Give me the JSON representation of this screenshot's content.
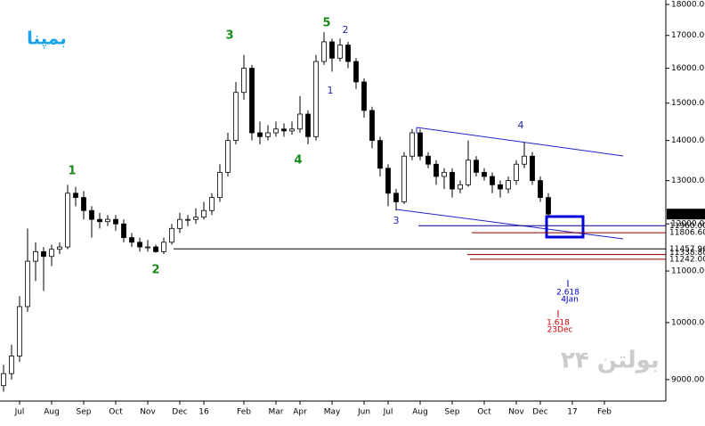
{
  "brand": "بمپنا",
  "watermark": "بولتن ۲۴",
  "chart_data": {
    "type": "candlestick",
    "categories": [
      null,
      null,
      "Jul",
      null,
      null,
      null,
      "Aug",
      null,
      null,
      null,
      "Sep",
      null,
      null,
      null,
      "Oct",
      null,
      null,
      null,
      "Nov",
      null,
      null,
      null,
      "Dec",
      null,
      null,
      "16",
      null,
      null,
      null,
      null,
      "Feb",
      null,
      null,
      null,
      "Mar",
      null,
      null,
      "Apr",
      null,
      null,
      null,
      "May",
      null,
      null,
      null,
      "Jun",
      null,
      null,
      "Jul",
      null,
      null,
      null,
      "Aug",
      null,
      null,
      null,
      "Sep",
      null,
      null,
      null,
      "Oct",
      null,
      null,
      null,
      "Nov",
      null,
      null,
      "Dec",
      null,
      null,
      null,
      "17",
      null,
      null,
      null,
      "Feb"
    ],
    "open": [
      8900,
      9100,
      9400,
      10300,
      11200,
      11400,
      11300,
      11450,
      11500,
      12700,
      12600,
      12300,
      12100,
      12050,
      12100,
      12000,
      11700,
      11600,
      11500,
      11500,
      11400,
      11600,
      11900,
      12100,
      12100,
      12150,
      12300,
      12600,
      13200,
      14000,
      15300,
      16000,
      14200,
      14100,
      14200,
      14300,
      14250,
      14300,
      14700,
      14100,
      16200,
      16800,
      16300,
      16700,
      16200,
      15600,
      14800,
      14000,
      13300,
      12700,
      12500,
      13600,
      14200,
      13600,
      13400,
      13100,
      13200,
      12800,
      12900,
      13500,
      13200,
      13100,
      12900,
      12800,
      13000,
      13400,
      13600,
      13000,
      12600,
      null,
      null,
      null,
      null,
      null,
      null,
      null
    ],
    "high": [
      9250,
      9600,
      10500,
      11900,
      11600,
      11500,
      11550,
      11600,
      12900,
      12850,
      12750,
      12400,
      12250,
      12200,
      12200,
      12100,
      11800,
      11700,
      11650,
      11550,
      11700,
      12000,
      12250,
      12200,
      12350,
      12500,
      12700,
      13400,
      14200,
      15600,
      16400,
      16100,
      14500,
      14400,
      14500,
      14450,
      14500,
      15200,
      14800,
      16400,
      17100,
      16900,
      16900,
      16800,
      16300,
      15700,
      14900,
      14100,
      13400,
      12800,
      13700,
      14300,
      14300,
      13700,
      13500,
      13300,
      13300,
      13000,
      14000,
      13600,
      13300,
      13200,
      13000,
      13100,
      13500,
      13950,
      13700,
      13100,
      12700,
      null,
      null,
      null,
      null,
      null,
      null,
      null
    ],
    "low": [
      8800,
      9000,
      9300,
      10200,
      10800,
      10600,
      11100,
      11350,
      11450,
      12400,
      12100,
      11700,
      11900,
      11950,
      11850,
      11600,
      11500,
      11400,
      11400,
      11380,
      11350,
      11550,
      11800,
      11950,
      12000,
      12100,
      12200,
      12500,
      13100,
      13900,
      15100,
      14000,
      13900,
      14000,
      14100,
      14100,
      14150,
      14200,
      13900,
      14000,
      16100,
      15900,
      16200,
      16000,
      15400,
      14600,
      13800,
      13100,
      12400,
      12300,
      12450,
      13500,
      13500,
      13300,
      12900,
      12800,
      12600,
      12700,
      12850,
      13100,
      13000,
      12700,
      12600,
      12700,
      12900,
      13300,
      12900,
      12500,
      12150,
      null,
      null,
      null,
      null,
      null,
      null,
      null
    ],
    "close": [
      9100,
      9400,
      10300,
      11200,
      11400,
      11300,
      11450,
      11500,
      12700,
      12600,
      12300,
      12100,
      12050,
      12100,
      12000,
      11700,
      11600,
      11500,
      11500,
      11400,
      11600,
      11900,
      12100,
      12100,
      12150,
      12300,
      12600,
      13200,
      14000,
      15300,
      16000,
      14200,
      14100,
      14200,
      14300,
      14250,
      14300,
      14700,
      14100,
      16200,
      16800,
      16300,
      16700,
      16200,
      15600,
      14800,
      14000,
      13300,
      12700,
      12500,
      13600,
      14200,
      13600,
      13400,
      13100,
      13200,
      12800,
      12900,
      13500,
      13200,
      13100,
      12900,
      12800,
      13000,
      13400,
      13600,
      13000,
      12600,
      12220,
      null,
      null,
      null,
      null,
      null,
      null,
      null
    ],
    "log_scale": true,
    "ylim": [
      8650,
      18150
    ],
    "yticks": [
      {
        "value": 9000,
        "label": "9000.00"
      },
      {
        "value": 10000,
        "label": "10000.00"
      },
      {
        "value": 11000,
        "label": "11000.00"
      },
      {
        "value": 12000,
        "label": "12000.00"
      },
      {
        "value": 13000,
        "label": "13000.00"
      },
      {
        "value": 14000,
        "label": "14000.00"
      },
      {
        "value": 15000,
        "label": "15000.00"
      },
      {
        "value": 16000,
        "label": "16000.00"
      },
      {
        "value": 17000,
        "label": "17000.00"
      },
      {
        "value": 18000,
        "label": "18000.00"
      }
    ],
    "last_price": {
      "value": 12220,
      "label": "12220.00"
    },
    "levels": [
      {
        "value": 11960,
        "label": "11960.00",
        "color": "#00008b"
      },
      {
        "value": 11806.6,
        "label": "11806.60",
        "color": "#8b0000"
      },
      {
        "value": 11457.96,
        "label": "11457.96",
        "color": "#00008b"
      },
      {
        "value": 11338.8,
        "label": "11338.80",
        "color": "#8b0000"
      },
      {
        "value": 11242,
        "label": "11242.00",
        "color": "#8b0000"
      }
    ],
    "waves": [
      {
        "text": "1",
        "color": "#1a8a1a"
      },
      {
        "text": "2",
        "color": "#1a8a1a"
      },
      {
        "text": "3",
        "color": "#1a8a1a"
      },
      {
        "text": "4",
        "color": "#1a8a1a"
      },
      {
        "text": "5",
        "color": "#1a8a1a"
      },
      {
        "text": "2",
        "color": "#2222aa"
      },
      {
        "text": "1",
        "color": "#2222aa"
      },
      {
        "text": "3",
        "color": "#2222aa"
      },
      {
        "text": "4",
        "color": "#2222aa"
      }
    ],
    "fibs": [
      {
        "ratio": "2.618",
        "date": "4Jan",
        "color": "#0000cc"
      },
      {
        "ratio": "1.618",
        "date": "23Dec",
        "color": "#cc0000"
      }
    ]
  }
}
